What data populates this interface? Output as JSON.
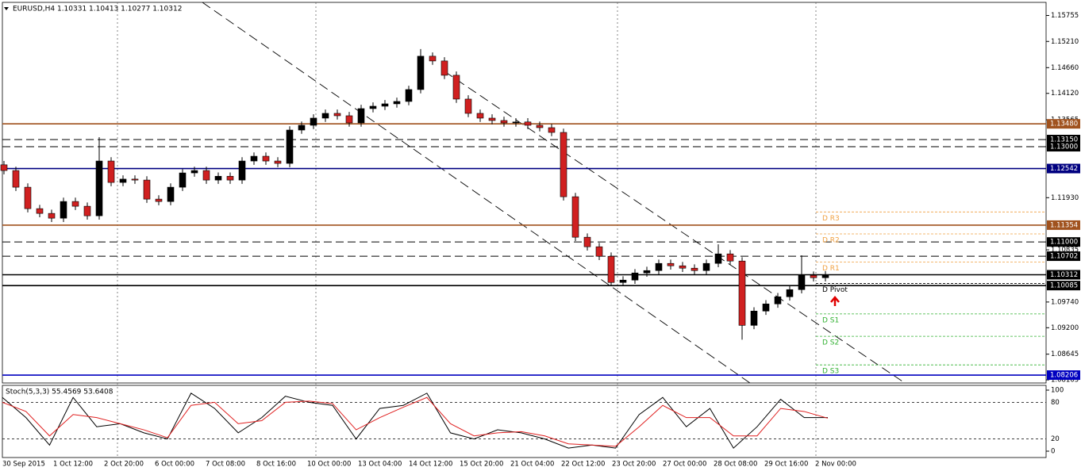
{
  "chart_data": {
    "type": "candlestick",
    "title": "EURUSD,H4  1.10331 1.10413 1.10277 1.10312",
    "up_color": "#000000",
    "down_color": "#d02020",
    "open": [
      1.1262,
      1.125,
      1.1215,
      1.117,
      1.116,
      1.115,
      1.1185,
      1.1175,
      1.1155,
      1.127,
      1.1225,
      1.1232,
      1.123,
      1.119,
      1.1185,
      1.1215,
      1.1245,
      1.125,
      1.123,
      1.1238,
      1.123,
      1.127,
      1.128,
      1.127,
      1.1265,
      1.1335,
      1.1345,
      1.136,
      1.137,
      1.1365,
      1.135,
      1.138,
      1.1385,
      1.139,
      1.1395,
      1.142,
      1.149,
      1.148,
      1.145,
      1.14,
      1.137,
      1.136,
      1.1355,
      1.135,
      1.1352,
      1.1345,
      1.134,
      1.133,
      1.1195,
      1.111,
      1.109,
      1.107,
      1.1015,
      1.102,
      1.1035,
      1.104,
      1.1055,
      1.105,
      1.1045,
      1.104,
      1.1055,
      1.1075,
      1.106,
      1.0925,
      1.0955,
      1.097,
      1.0985,
      1.1,
      1.103,
      1.1025
    ],
    "high": [
      1.127,
      1.1258,
      1.1223,
      1.1178,
      1.1168,
      1.1193,
      1.1193,
      1.1183,
      1.132,
      1.1278,
      1.124,
      1.124,
      1.1238,
      1.1198,
      1.1223,
      1.1253,
      1.1258,
      1.1258,
      1.1246,
      1.1246,
      1.1278,
      1.1288,
      1.1288,
      1.1278,
      1.1343,
      1.1353,
      1.1368,
      1.1378,
      1.1378,
      1.1373,
      1.1388,
      1.1393,
      1.1398,
      1.1403,
      1.1428,
      1.1505,
      1.1498,
      1.1488,
      1.1458,
      1.1408,
      1.1378,
      1.1368,
      1.1363,
      1.136,
      1.136,
      1.1353,
      1.1348,
      1.1338,
      1.1203,
      1.1118,
      1.1098,
      1.1078,
      1.1028,
      1.1043,
      1.1048,
      1.1063,
      1.1063,
      1.1058,
      1.1053,
      1.1063,
      1.1095,
      1.1083,
      1.1068,
      1.0963,
      1.0978,
      1.0993,
      1.1008,
      1.1072,
      1.1038,
      1.1039
    ],
    "low": [
      1.1242,
      1.1207,
      1.1162,
      1.1152,
      1.1142,
      1.1142,
      1.1167,
      1.1147,
      1.1147,
      1.1217,
      1.1217,
      1.1222,
      1.1182,
      1.1177,
      1.1177,
      1.1207,
      1.1237,
      1.1222,
      1.1222,
      1.1222,
      1.1222,
      1.1262,
      1.1262,
      1.1257,
      1.1257,
      1.1327,
      1.1337,
      1.1352,
      1.1357,
      1.1342,
      1.1342,
      1.1372,
      1.1377,
      1.1382,
      1.1387,
      1.1412,
      1.1472,
      1.1442,
      1.1392,
      1.1362,
      1.1352,
      1.1347,
      1.1342,
      1.1342,
      1.1337,
      1.1332,
      1.1322,
      1.1187,
      1.1102,
      1.1082,
      1.1062,
      1.1007,
      1.1007,
      1.1012,
      1.1027,
      1.1032,
      1.1042,
      1.1037,
      1.1032,
      1.1032,
      1.1047,
      1.1052,
      1.0895,
      1.0917,
      1.0947,
      1.0962,
      1.0977,
      1.0992,
      1.1017,
      1.1017
    ],
    "close": [
      1.125,
      1.1215,
      1.117,
      1.116,
      1.115,
      1.1185,
      1.1175,
      1.1155,
      1.127,
      1.1225,
      1.1232,
      1.123,
      1.119,
      1.1185,
      1.1215,
      1.1245,
      1.125,
      1.123,
      1.1238,
      1.123,
      1.127,
      1.128,
      1.127,
      1.1265,
      1.1335,
      1.1345,
      1.136,
      1.137,
      1.1365,
      1.135,
      1.138,
      1.1385,
      1.139,
      1.1395,
      1.142,
      1.149,
      1.148,
      1.145,
      1.14,
      1.137,
      1.136,
      1.1355,
      1.135,
      1.1352,
      1.1345,
      1.134,
      1.133,
      1.1195,
      1.111,
      1.109,
      1.107,
      1.1015,
      1.102,
      1.1035,
      1.104,
      1.1055,
      1.105,
      1.1045,
      1.104,
      1.1055,
      1.1075,
      1.106,
      1.0925,
      1.0955,
      1.097,
      1.0985,
      1.1,
      1.103,
      1.1025,
      1.1031
    ],
    "x_labels": [
      "30 Sep 2015",
      "1 Oct 12:00",
      "2 Oct 20:00",
      "6 Oct 00:00",
      "7 Oct 08:00",
      "8 Oct 16:00",
      "10 Oct 00:00",
      "13 Oct 04:00",
      "14 Oct 12:00",
      "15 Oct 20:00",
      "21 Oct 04:00",
      "22 Oct 12:00",
      "23 Oct 20:00",
      "27 Oct 00:00",
      "28 Oct 08:00",
      "29 Oct 16:00",
      "2 Nov 00:00"
    ],
    "ylim": [
      1.0804,
      1.1603
    ],
    "yticks": [
      1.15755,
      {
        "value": 1.1521,
        "label": "1.15210"
      },
      {
        "value": 1.1466,
        "label": "1.14660"
      },
      {
        "value": 1.1412,
        "label": "1.14120"
      },
      1.13565,
      {
        "value": 1.1193,
        "label": "1.11930"
      },
      1.10835,
      {
        "value": 1.0974,
        "label": "1.09740"
      },
      {
        "value": 1.092,
        "label": "1.09200"
      },
      1.08645,
      1.08105
    ],
    "levels": [
      {
        "value": 1.1348,
        "label": "1.13480",
        "color": "#a0521e",
        "dashed": false
      },
      {
        "value": 1.1315,
        "label": "1.13150",
        "color": "#000000",
        "dashed": true
      },
      {
        "value": 1.13,
        "label": "1.13000",
        "color": "#000000",
        "dashed": true
      },
      {
        "value": 1.12542,
        "color": "#000080",
        "dashed": false
      },
      {
        "value": 1.11354,
        "color": "#a0521e",
        "dashed": false
      },
      {
        "value": 1.11,
        "label": "1.11000",
        "color": "#000000",
        "dashed": true
      },
      {
        "value": 1.10702,
        "color": "#000000",
        "dashed": true
      },
      {
        "value": 1.10312,
        "color": "#000000",
        "dashed": false
      },
      {
        "value": 1.10085,
        "color": "#000000",
        "dashed": false
      },
      {
        "value": 1.08206,
        "color": "#0000c0",
        "dashed": false
      }
    ],
    "pivots": [
      {
        "name": "D R3",
        "value": 1.1163,
        "color": "#f0a040"
      },
      {
        "name": "D R2",
        "value": 1.1117,
        "color": "#f0a040"
      },
      {
        "name": "D R1",
        "value": 1.1058,
        "color": "#f0a040"
      },
      {
        "name": "D Pivot",
        "value": 1.1013,
        "color": "#000000"
      },
      {
        "name": "D S1",
        "value": 1.0949,
        "color": "#30b030"
      },
      {
        "name": "D S2",
        "value": 1.0902,
        "color": "#30b030"
      },
      {
        "name": "D S3",
        "value": 1.0842,
        "color": "#30b030"
      }
    ],
    "stoch": {
      "title": "Stoch(5,3,3) 55.4569 53.6408",
      "ylim": [
        0,
        100
      ],
      "yticks": [
        100,
        80,
        20,
        0
      ],
      "k": {
        "color": "#000000",
        "values": [
          88,
          55,
          10,
          88,
          40,
          45,
          30,
          20,
          95,
          70,
          30,
          55,
          90,
          80,
          75,
          20,
          70,
          75,
          95,
          30,
          20,
          35,
          30,
          20,
          5,
          10,
          5,
          60,
          88,
          40,
          70,
          5,
          40,
          85,
          55,
          55
        ]
      },
      "d": {
        "color": "#e02020",
        "values": [
          80,
          65,
          25,
          60,
          55,
          45,
          35,
          22,
          75,
          80,
          45,
          50,
          80,
          82,
          78,
          35,
          55,
          72,
          88,
          45,
          25,
          30,
          32,
          25,
          12,
          10,
          8,
          40,
          75,
          55,
          55,
          25,
          25,
          70,
          65,
          54
        ]
      }
    }
  }
}
